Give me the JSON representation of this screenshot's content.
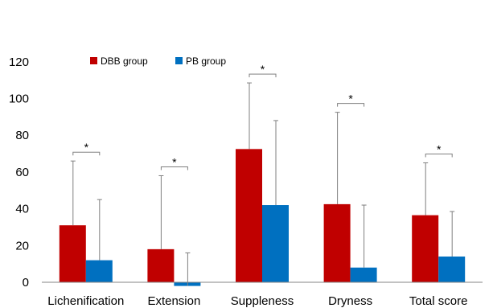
{
  "chart_data": {
    "type": "bar",
    "categories": [
      "Lichenification",
      "Extension",
      "Suppleness",
      "Dryness",
      "Total score"
    ],
    "series": [
      {
        "name": "DBB group",
        "color": "#c00000",
        "values": [
          31,
          18,
          72.5,
          42.5,
          36.5
        ],
        "error_upper": [
          66,
          58,
          108.5,
          92.5,
          65
        ]
      },
      {
        "name": "PB group",
        "color": "#0070c0",
        "values": [
          12,
          -2,
          42,
          8,
          14
        ],
        "error_upper": [
          45,
          16,
          88,
          42,
          38.5
        ]
      }
    ],
    "ylim": [
      0,
      120
    ],
    "yticks": [
      0,
      20,
      40,
      60,
      80,
      100,
      120
    ],
    "significance_marker": "*",
    "grid": false,
    "legend_position": "top-left"
  }
}
